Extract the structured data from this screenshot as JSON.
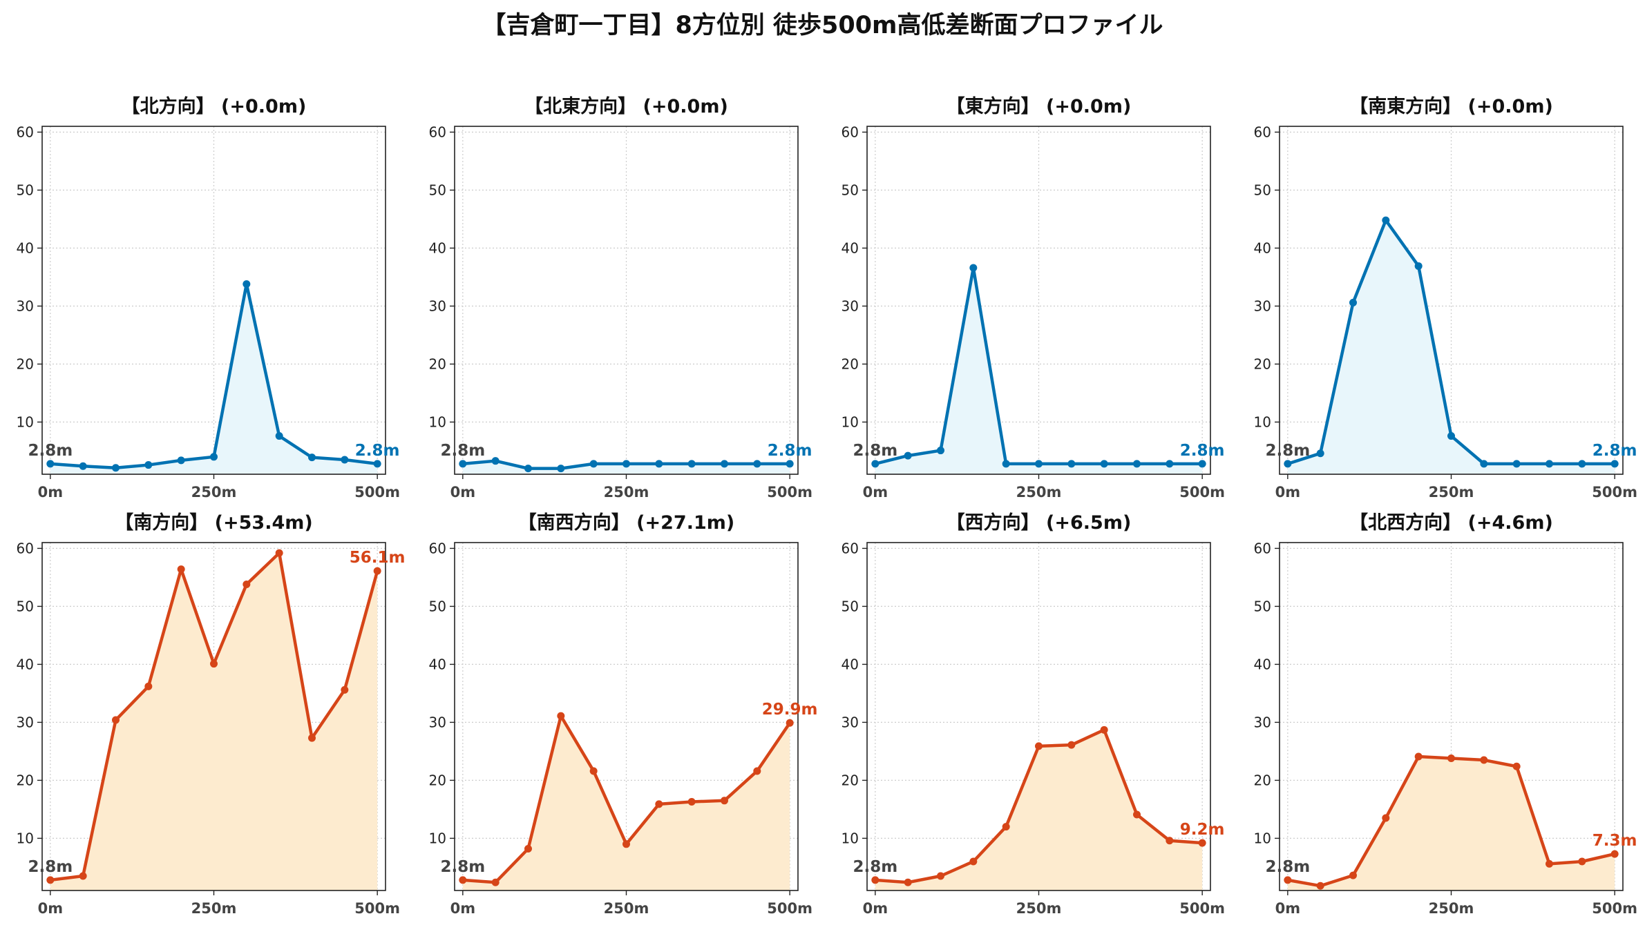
{
  "title": "【吉倉町一丁目】8方位別 徒歩500m高低差断面プロファイル",
  "colors": {
    "up_line": "#0072b2",
    "up_fill": "#e8f6fb",
    "down_line": "#d64518",
    "down_fill": "#fdebcf",
    "grid": "#cccccc",
    "start_label": "#444444"
  },
  "chart_data": [
    {
      "type": "area",
      "title": "【北方向】 (+0.0m)",
      "x": [
        0,
        50,
        100,
        150,
        200,
        250,
        300,
        350,
        400,
        450,
        500
      ],
      "y": [
        2.8,
        2.4,
        2.1,
        2.6,
        3.4,
        4.0,
        33.8,
        7.6,
        3.9,
        3.5,
        2.8
      ],
      "start_label": "2.8m",
      "end_label": "2.8m",
      "style": "up",
      "ylim": [
        1,
        61
      ],
      "yticks": [
        10,
        20,
        30,
        40,
        50,
        60
      ],
      "xticks": [
        0,
        250,
        500
      ],
      "xtick_labels": [
        "0m",
        "250m",
        "500m"
      ],
      "grid": true
    },
    {
      "type": "area",
      "title": "【北東方向】 (+0.0m)",
      "x": [
        0,
        50,
        100,
        150,
        200,
        250,
        300,
        350,
        400,
        450,
        500
      ],
      "y": [
        2.8,
        3.3,
        2.0,
        2.0,
        2.8,
        2.8,
        2.8,
        2.8,
        2.8,
        2.8,
        2.8
      ],
      "start_label": "2.8m",
      "end_label": "2.8m",
      "style": "up",
      "ylim": [
        1,
        61
      ],
      "yticks": [
        10,
        20,
        30,
        40,
        50,
        60
      ],
      "xticks": [
        0,
        250,
        500
      ],
      "xtick_labels": [
        "0m",
        "250m",
        "500m"
      ],
      "grid": true
    },
    {
      "type": "area",
      "title": "【東方向】 (+0.0m)",
      "x": [
        0,
        50,
        100,
        150,
        200,
        250,
        300,
        350,
        400,
        450,
        500
      ],
      "y": [
        2.8,
        4.2,
        5.1,
        36.6,
        2.8,
        2.8,
        2.8,
        2.8,
        2.8,
        2.8,
        2.8
      ],
      "start_label": "2.8m",
      "end_label": "2.8m",
      "style": "up",
      "ylim": [
        1,
        61
      ],
      "yticks": [
        10,
        20,
        30,
        40,
        50,
        60
      ],
      "xticks": [
        0,
        250,
        500
      ],
      "xtick_labels": [
        "0m",
        "250m",
        "500m"
      ],
      "grid": true
    },
    {
      "type": "area",
      "title": "【南東方向】 (+0.0m)",
      "x": [
        0,
        50,
        100,
        150,
        200,
        250,
        300,
        350,
        400,
        450,
        500
      ],
      "y": [
        2.8,
        4.6,
        30.6,
        44.8,
        36.9,
        7.6,
        2.8,
        2.8,
        2.8,
        2.8,
        2.8
      ],
      "start_label": "2.8m",
      "end_label": "2.8m",
      "style": "up",
      "ylim": [
        1,
        61
      ],
      "yticks": [
        10,
        20,
        30,
        40,
        50,
        60
      ],
      "xticks": [
        0,
        250,
        500
      ],
      "xtick_labels": [
        "0m",
        "250m",
        "500m"
      ],
      "grid": true
    },
    {
      "type": "area",
      "title": "【南方向】 (+53.4m)",
      "x": [
        0,
        50,
        100,
        150,
        200,
        250,
        300,
        350,
        400,
        450,
        500
      ],
      "y": [
        2.8,
        3.5,
        30.4,
        36.2,
        56.4,
        40.1,
        53.8,
        59.2,
        27.3,
        35.6,
        56.1
      ],
      "start_label": "2.8m",
      "end_label": "56.1m",
      "style": "down",
      "ylim": [
        1,
        61
      ],
      "yticks": [
        10,
        20,
        30,
        40,
        50,
        60
      ],
      "xticks": [
        0,
        250,
        500
      ],
      "xtick_labels": [
        "0m",
        "250m",
        "500m"
      ],
      "grid": true
    },
    {
      "type": "area",
      "title": "【南西方向】 (+27.1m)",
      "x": [
        0,
        50,
        100,
        150,
        200,
        250,
        300,
        350,
        400,
        450,
        500
      ],
      "y": [
        2.8,
        2.4,
        8.2,
        31.1,
        21.6,
        9.0,
        15.9,
        16.3,
        16.5,
        21.6,
        29.9
      ],
      "start_label": "2.8m",
      "end_label": "29.9m",
      "style": "down",
      "ylim": [
        1,
        61
      ],
      "yticks": [
        10,
        20,
        30,
        40,
        50,
        60
      ],
      "xticks": [
        0,
        250,
        500
      ],
      "xtick_labels": [
        "0m",
        "250m",
        "500m"
      ],
      "grid": true
    },
    {
      "type": "area",
      "title": "【西方向】 (+6.5m)",
      "x": [
        0,
        50,
        100,
        150,
        200,
        250,
        300,
        350,
        400,
        450,
        500
      ],
      "y": [
        2.8,
        2.4,
        3.5,
        6.0,
        12.0,
        25.9,
        26.1,
        28.7,
        14.1,
        9.6,
        9.2
      ],
      "start_label": "2.8m",
      "end_label": "9.2m",
      "style": "down",
      "ylim": [
        1,
        61
      ],
      "yticks": [
        10,
        20,
        30,
        40,
        50,
        60
      ],
      "xticks": [
        0,
        250,
        500
      ],
      "xtick_labels": [
        "0m",
        "250m",
        "500m"
      ],
      "grid": true
    },
    {
      "type": "area",
      "title": "【北西方向】 (+4.6m)",
      "x": [
        0,
        50,
        100,
        150,
        200,
        250,
        300,
        350,
        400,
        450,
        500
      ],
      "y": [
        2.8,
        1.8,
        3.6,
        13.5,
        24.1,
        23.8,
        23.5,
        22.4,
        5.6,
        6.0,
        7.3
      ],
      "start_label": "2.8m",
      "end_label": "7.3m",
      "style": "down",
      "ylim": [
        1,
        61
      ],
      "yticks": [
        10,
        20,
        30,
        40,
        50,
        60
      ],
      "xticks": [
        0,
        250,
        500
      ],
      "xtick_labels": [
        "0m",
        "250m",
        "500m"
      ],
      "grid": true
    }
  ]
}
